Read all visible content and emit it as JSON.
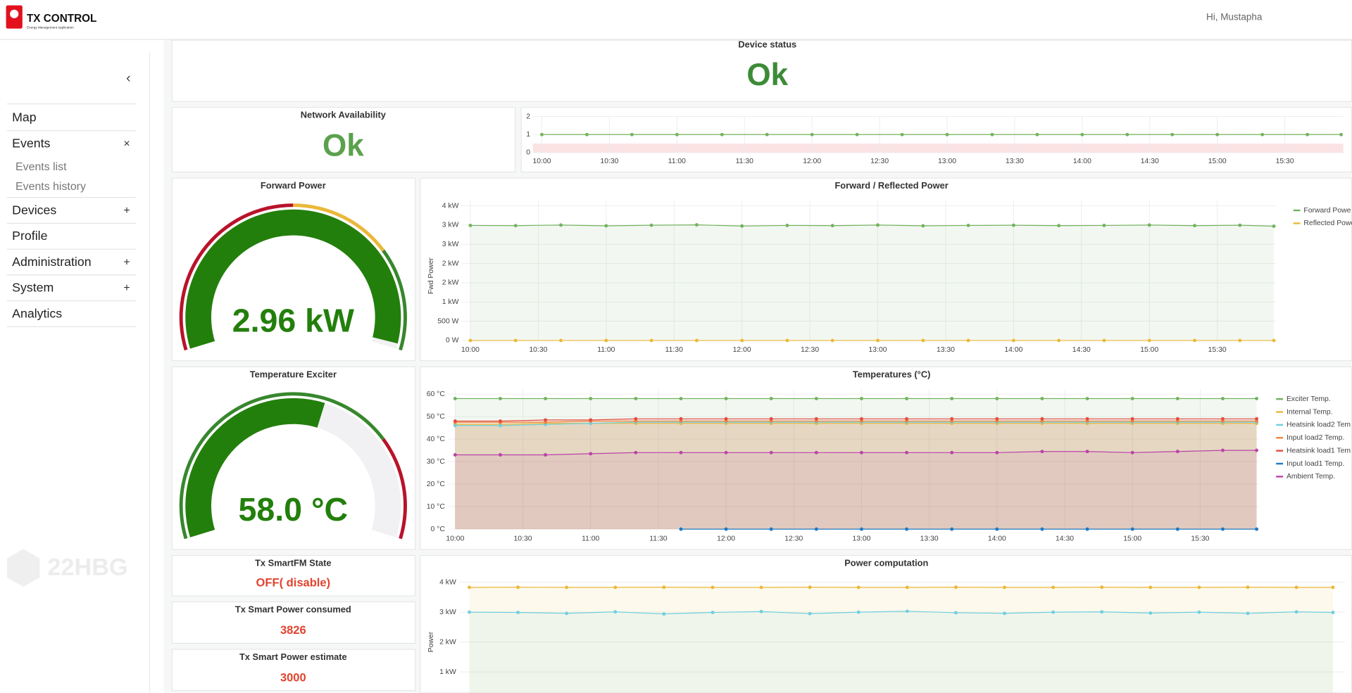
{
  "header": {
    "logo_title": "TX CONTROL",
    "logo_subtitle": "Energy Management Application",
    "greeting": "Hi, Mustapha"
  },
  "sidebar": {
    "collapse": "‹",
    "watermark": "22HBG",
    "menu": [
      {
        "label": "Map"
      },
      {
        "label": "Events",
        "toggle": "×",
        "children": [
          "Events list",
          "Events history"
        ]
      },
      {
        "label": "Devices",
        "toggle": "+"
      },
      {
        "label": "Profile"
      },
      {
        "label": "Administration",
        "toggle": "+"
      },
      {
        "label": "System",
        "toggle": "+"
      },
      {
        "label": "Analytics"
      }
    ]
  },
  "panels": [
    {
      "title": "Device status",
      "value": "Ok",
      "color": "#3d8b37"
    },
    {
      "title": "Network Availability",
      "value": "Ok",
      "color": "#5ba14d"
    },
    {
      "title": "Tx SmartFM State",
      "value": "OFF( disable)",
      "color": "#e0442f"
    },
    {
      "title": "Tx Smart Power consumed",
      "value": 3826,
      "color": "#e0442f"
    },
    {
      "title": "Tx Smart Power estimate",
      "value": 3000,
      "color": "#e0442f"
    }
  ],
  "chart_data": [
    {
      "type": "line",
      "x": [
        "10:00",
        "10:20",
        "10:40",
        "11:00",
        "11:20",
        "11:40",
        "12:00",
        "12:20",
        "12:40",
        "13:00",
        "13:20",
        "13:40",
        "14:00",
        "14:20",
        "14:40",
        "15:00",
        "15:20",
        "15:40",
        "15:55"
      ],
      "xlim": [
        "09:56",
        "15:56"
      ],
      "xticks": [
        "10:00",
        "10:30",
        "11:00",
        "11:30",
        "12:00",
        "12:30",
        "13:00",
        "13:30",
        "14:00",
        "14:30",
        "15:00",
        "15:30"
      ],
      "ylim": [
        0,
        2
      ],
      "yticks": [
        0,
        1,
        2
      ],
      "grid": true,
      "threshold": {
        "value": 0.5,
        "color": "#fbe3e3"
      },
      "series": [
        {
          "color": "#73b35f",
          "values": [
            1,
            1,
            1,
            1,
            1,
            1,
            1,
            1,
            1,
            1,
            1,
            1,
            1,
            1,
            1,
            1,
            1,
            1,
            1
          ]
        }
      ]
    },
    {
      "type": "gauge",
      "title": "Forward Power",
      "value": 2.96,
      "value_label": "2.96 kW",
      "range": [
        0,
        3
      ],
      "color": "#237f0c",
      "thresholds": [
        {
          "value": 0,
          "color": "#b8132a"
        },
        {
          "value": 1.5,
          "color": "#eab839"
        },
        {
          "value": 2.25,
          "color": "#37872d"
        }
      ]
    },
    {
      "type": "line",
      "title": "Forward / Reflected Power",
      "ylabel": "Fwd Power",
      "x": [
        "10:00",
        "10:20",
        "10:40",
        "11:00",
        "11:20",
        "11:40",
        "12:00",
        "12:20",
        "12:40",
        "13:00",
        "13:20",
        "13:40",
        "14:00",
        "14:20",
        "14:40",
        "15:00",
        "15:20",
        "15:40",
        "15:55"
      ],
      "xlim": [
        "09:56",
        "15:56"
      ],
      "xticks": [
        "10:00",
        "10:30",
        "11:00",
        "11:30",
        "12:00",
        "12:30",
        "13:00",
        "13:30",
        "14:00",
        "14:30",
        "15:00",
        "15:30"
      ],
      "ylim": [
        0,
        3650
      ],
      "yticks": [
        {
          "value": 0,
          "label": "0 W"
        },
        {
          "value": 500,
          "label": "500 W"
        },
        {
          "value": 1000,
          "label": "1 kW"
        },
        {
          "value": 1500,
          "label": "2 kW"
        },
        {
          "value": 2000,
          "label": "2 kW"
        },
        {
          "value": 2500,
          "label": "3 kW"
        },
        {
          "value": 3000,
          "label": "3 kW"
        },
        {
          "value": 3500,
          "label": "4 kW"
        }
      ],
      "grid": true,
      "legend": true,
      "area": true,
      "series": [
        {
          "name": "Forward Powe",
          "color": "#73b35f",
          "values": [
            2990,
            2985,
            3000,
            2980,
            2995,
            3005,
            2975,
            2990,
            2985,
            3000,
            2980,
            2990,
            2995,
            2985,
            2990,
            3000,
            2985,
            2995,
            2970
          ]
        },
        {
          "name": "Reflected Powe",
          "color": "#eab839",
          "values": [
            0,
            0,
            0,
            0,
            0,
            0,
            0,
            0,
            0,
            0,
            0,
            0,
            0,
            0,
            0,
            0,
            0,
            0,
            0
          ]
        }
      ]
    },
    {
      "type": "gauge",
      "title": "Temperature Exciter",
      "value": 58.0,
      "value_label": "58.0 °C",
      "range": [
        0,
        100
      ],
      "color": "#237f0c",
      "thresholds": [
        {
          "value": 0,
          "color": "#37872d"
        },
        {
          "value": 75,
          "color": "#b8132a"
        }
      ]
    },
    {
      "type": "line",
      "title": "Temperatures (°C)",
      "x": [
        "10:00",
        "10:20",
        "10:40",
        "11:00",
        "11:20",
        "11:40",
        "12:00",
        "12:20",
        "12:40",
        "13:00",
        "13:20",
        "13:40",
        "14:00",
        "14:20",
        "14:40",
        "15:00",
        "15:20",
        "15:40",
        "15:55"
      ],
      "xlim": [
        "09:57",
        "15:56"
      ],
      "xticks": [
        "10:00",
        "10:30",
        "11:00",
        "11:30",
        "12:00",
        "12:30",
        "13:00",
        "13:30",
        "14:00",
        "14:30",
        "15:00",
        "15:30"
      ],
      "ylim": [
        0,
        62
      ],
      "yticks": [
        {
          "value": 0,
          "label": "0 °C"
        },
        {
          "value": 10,
          "label": "10 °C"
        },
        {
          "value": 20,
          "label": "20 °C"
        },
        {
          "value": 30,
          "label": "30 °C"
        },
        {
          "value": 40,
          "label": "40 °C"
        },
        {
          "value": 50,
          "label": "50 °C"
        },
        {
          "value": 60,
          "label": "60 °C"
        }
      ],
      "grid": true,
      "legend": true,
      "area": true,
      "series": [
        {
          "name": "Exciter Temp.",
          "color": "#73b35f",
          "values": [
            58,
            58,
            58,
            58,
            58,
            58,
            58,
            58,
            58,
            58,
            58,
            58,
            58,
            58,
            58,
            58,
            58,
            58,
            58
          ]
        },
        {
          "name": "Internal Temp.",
          "color": "#eab839",
          "values": [
            46.5,
            46.5,
            47,
            47,
            47,
            47,
            47,
            47,
            47,
            47,
            47,
            47,
            47,
            47,
            47,
            47,
            47,
            47,
            47
          ]
        },
        {
          "name": "Heatsink load2 Tem",
          "color": "#6ed0e0",
          "values": [
            46,
            46,
            46.5,
            47,
            47.5,
            47.5,
            47.5,
            47.5,
            47.5,
            47.5,
            47.5,
            47.5,
            47.5,
            47.5,
            47.5,
            47.5,
            47.5,
            47.5,
            47.5
          ]
        },
        {
          "name": "Input load2 Temp.",
          "color": "#ef843c",
          "values": [
            47.5,
            47.5,
            47.5,
            48,
            48,
            48,
            48,
            48,
            48,
            48,
            48,
            48,
            48,
            48,
            48,
            48,
            48,
            48,
            48
          ]
        },
        {
          "name": "Heatsink load1 Tem",
          "color": "#e24d42",
          "values": [
            48,
            48,
            48.5,
            48.5,
            49,
            49,
            49,
            49,
            49,
            49,
            49,
            49,
            49,
            49,
            49,
            49,
            49,
            49,
            49
          ]
        },
        {
          "name": "Input load1 Temp.",
          "color": "#1f78c1",
          "values": [
            null,
            null,
            null,
            null,
            null,
            0,
            0,
            0,
            0,
            0,
            0,
            0,
            0,
            0,
            0,
            0,
            0,
            0,
            0
          ]
        },
        {
          "name": "Ambient Temp.",
          "color": "#ba43a9",
          "values": [
            33,
            33,
            33,
            33.5,
            34,
            34,
            34,
            34,
            34,
            34,
            34,
            34,
            34,
            34.5,
            34.5,
            34,
            34.5,
            35,
            35
          ]
        }
      ]
    },
    {
      "type": "line",
      "title": "Power computation",
      "ylabel": "Power",
      "x": [
        "10:00",
        "10:20",
        "10:40",
        "11:00",
        "11:20",
        "11:40",
        "12:00",
        "12:20",
        "12:40",
        "13:00",
        "13:20",
        "13:40",
        "14:00",
        "14:20",
        "14:40",
        "15:00",
        "15:20",
        "15:40",
        "15:55"
      ],
      "xlim": [
        "09:56",
        "16:00"
      ],
      "ylim": [
        300,
        4250
      ],
      "yticks": [
        {
          "value": 1000,
          "label": "1 kW"
        },
        {
          "value": 2000,
          "label": "2 kW"
        },
        {
          "value": 3000,
          "label": "3 kW"
        },
        {
          "value": 4000,
          "label": "4 kW"
        }
      ],
      "grid": true,
      "area": true,
      "series": [
        {
          "color": "#eab839",
          "values": [
            3830,
            3835,
            3830,
            3830,
            3835,
            3830,
            3830,
            3835,
            3830,
            3830,
            3835,
            3830,
            3830,
            3835,
            3830,
            3830,
            3835,
            3830,
            3830
          ]
        },
        {
          "color": "#6ed0e0",
          "values": [
            3000,
            2990,
            2960,
            3010,
            2940,
            2990,
            3020,
            2950,
            3000,
            3030,
            2980,
            2960,
            3000,
            3010,
            2970,
            3000,
            2960,
            3010,
            2990
          ]
        }
      ]
    }
  ]
}
